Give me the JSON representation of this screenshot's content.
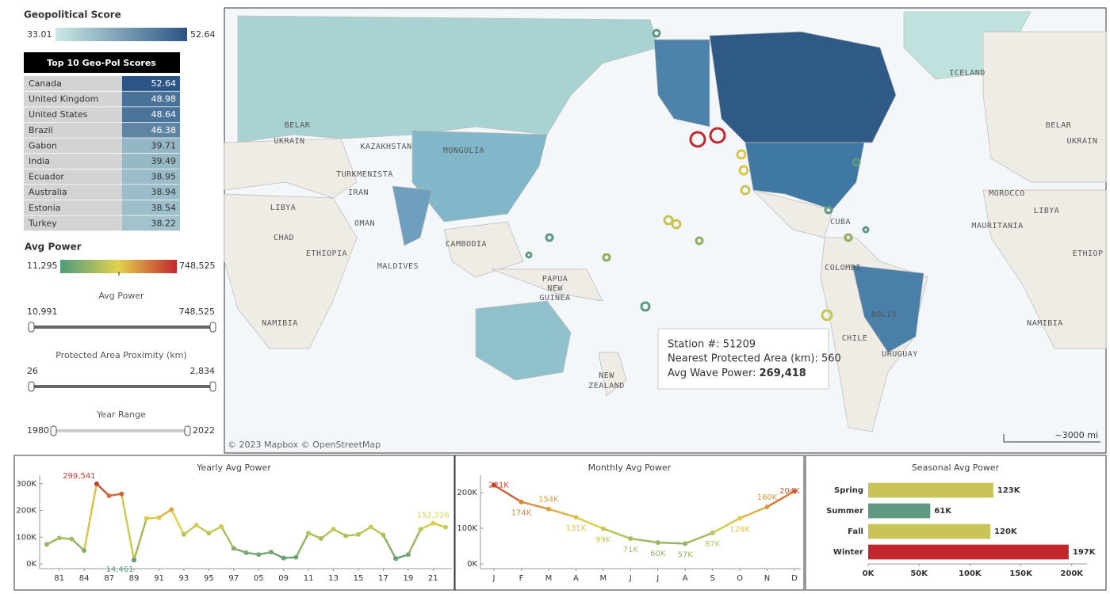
{
  "geo_legend": {
    "title": "Geopolitical Score",
    "min": 33.01,
    "max": 52.64,
    "colors": [
      "#cbe9e5",
      "#2c5585"
    ]
  },
  "top10": {
    "title": "Top 10 Geo-Pol Scores",
    "rows": [
      {
        "country": "Canada",
        "score": 52.64
      },
      {
        "country": "United Kingdom",
        "score": 48.98
      },
      {
        "country": "United States",
        "score": 48.64
      },
      {
        "country": "Brazil",
        "score": 46.38
      },
      {
        "country": "Gabon",
        "score": 39.71
      },
      {
        "country": "India",
        "score": 39.49
      },
      {
        "country": "Ecuador",
        "score": 38.95
      },
      {
        "country": "Australia",
        "score": 38.94
      },
      {
        "country": "Estonia",
        "score": 38.54
      },
      {
        "country": "Turkey",
        "score": 38.22
      }
    ]
  },
  "power_legend": {
    "title": "Avg Power",
    "min": {
      "value": 11295,
      "label": "11,295"
    },
    "max": {
      "value": 748525,
      "label": "748,525"
    },
    "colors": [
      "#4f9a7c",
      "#e2d24e",
      "#c1272d"
    ]
  },
  "filters": [
    {
      "title": "Avg Power",
      "min": {
        "value": 10991,
        "label": "10,991"
      },
      "max": {
        "value": 748525,
        "label": "748,525"
      }
    },
    {
      "title": "Protected Area Proximity (km)",
      "min": 26,
      "max": {
        "value": 2834,
        "label": "2,834"
      }
    },
    {
      "title": "Year Range",
      "min": 1980,
      "max": 2022
    }
  ],
  "map": {
    "attribution": "© 2023 Mapbox © OpenStreetMap",
    "scale": "~3000 mi",
    "labels": [
      "ICELAND",
      "BELAR",
      "UKRAIN",
      "KAZAKHSTAN",
      "MONGOLIA",
      "TURKMENISTA",
      "IRAN",
      "LIBYA",
      "CHAD",
      "OMAN",
      "ETHIOPIA",
      "MALDIVES",
      "CAMBODIA",
      "PAPUA",
      "NEW",
      "GUINEA",
      "NAMIBIA",
      "NEW",
      "ZEALAND",
      "CUBA",
      "COLOMBI",
      "BOLIV",
      "CHILE",
      "URUGUAY",
      "MOROCCO",
      "MAURITANIA",
      "LIBYA",
      "ETHIOP",
      "NAMIBIA",
      "BELAR",
      "UKRAIN"
    ],
    "tooltip": {
      "station": "Station #: 51209",
      "proximity": "Nearest Protected Area (km): 560",
      "power_label": "Avg Wave Power:",
      "power_value": "269,418"
    }
  },
  "chart_data": [
    {
      "type": "line",
      "title": "Yearly Avg Power",
      "categories": [
        null,
        "81",
        null,
        "84",
        null,
        "87",
        null,
        "89",
        null,
        "91",
        null,
        "93",
        null,
        "95",
        null,
        "97",
        null,
        "05",
        null,
        "09",
        null,
        "11",
        null,
        "13",
        null,
        "15",
        null,
        "17",
        null,
        "19",
        null,
        "21",
        null
      ],
      "values": [
        73000,
        97000,
        93000,
        50000,
        299541,
        255000,
        262000,
        14461,
        170000,
        173000,
        203000,
        110000,
        145000,
        115000,
        140000,
        58000,
        42000,
        35000,
        44000,
        22000,
        25000,
        115000,
        95000,
        130000,
        105000,
        110000,
        138000,
        108000,
        20000,
        35000,
        130000,
        152226,
        137000
      ],
      "value_labels": [
        null,
        null,
        null,
        null,
        "299,541",
        null,
        null,
        "14,461",
        null,
        null,
        null,
        null,
        null,
        null,
        null,
        null,
        null,
        null,
        null,
        null,
        null,
        null,
        null,
        null,
        null,
        null,
        null,
        null,
        null,
        null,
        null,
        "152,226",
        null
      ],
      "ylim": [
        0,
        320000
      ],
      "yticks": [
        {
          "value": 0,
          "label": "0K"
        },
        {
          "value": 100000,
          "label": "100K"
        },
        {
          "value": 200000,
          "label": "200K"
        },
        {
          "value": 300000,
          "label": "300K"
        }
      ],
      "colorscale": [
        "#4f9a7c",
        "#e2d24e",
        "#c1272d"
      ]
    },
    {
      "type": "line",
      "title": "Monthly Avg Power",
      "categories": [
        "J",
        "F",
        "M",
        "A",
        "M",
        "J",
        "J",
        "A",
        "S",
        "O",
        "N",
        "D"
      ],
      "values": [
        221000,
        174000,
        154000,
        131000,
        99000,
        71000,
        60000,
        57000,
        87000,
        128000,
        160000,
        204000
      ],
      "value_labels": [
        "221K",
        "174K",
        "154K",
        "131K",
        "99K",
        "71K",
        "60K",
        "57K",
        "87K",
        "128K",
        "160K",
        "204K"
      ],
      "ylim": [
        0,
        240000
      ],
      "yticks": [
        {
          "value": 0,
          "label": "0K"
        },
        {
          "value": 100000,
          "label": "100K"
        },
        {
          "value": 200000,
          "label": "200K"
        }
      ],
      "colorscale": [
        "#4f9a7c",
        "#e2d24e",
        "#c1272d"
      ]
    },
    {
      "type": "hbar",
      "title": "Seasonal Avg Power",
      "categories": [
        "Spring",
        "Summer",
        "Fall",
        "Winter"
      ],
      "values": [
        123000,
        61000,
        120000,
        197000
      ],
      "value_labels": [
        "123K",
        "61K",
        "120K",
        "197K"
      ],
      "colors": [
        "#c9c458",
        "#5d9a80",
        "#c9c458",
        "#c1272d"
      ],
      "xlim": [
        0,
        215000
      ],
      "xticks": [
        {
          "value": 0,
          "label": "0K"
        },
        {
          "value": 50000,
          "label": "50K"
        },
        {
          "value": 100000,
          "label": "100K"
        },
        {
          "value": 150000,
          "label": "150K"
        },
        {
          "value": 200000,
          "label": "200K"
        }
      ]
    }
  ]
}
